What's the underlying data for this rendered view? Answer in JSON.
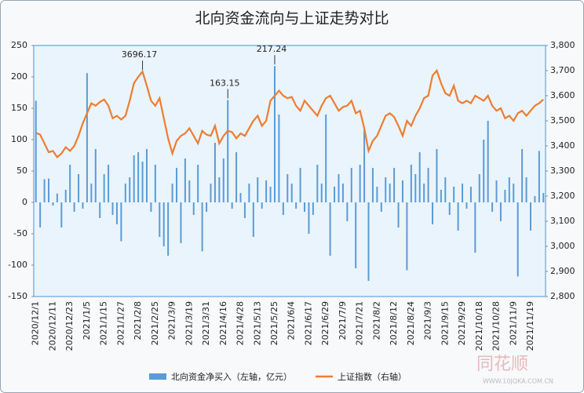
{
  "chart_data": {
    "type": "bar-line",
    "title": "北向资金流向与上证走势对比",
    "categories": [
      "2020/12/1",
      null,
      null,
      null,
      "2020/12/11",
      null,
      null,
      null,
      "2020/12/23",
      null,
      null,
      null,
      "2021/1/5",
      null,
      null,
      null,
      "2021/1/15",
      null,
      null,
      null,
      "2021/1/27",
      null,
      null,
      null,
      "2021/2/8",
      null,
      null,
      null,
      "2021/2/25",
      null,
      null,
      null,
      "2021/3/9",
      null,
      null,
      null,
      "2021/3/19",
      null,
      null,
      null,
      "2021/3/31",
      null,
      null,
      null,
      "2021/4/16",
      null,
      null,
      null,
      "2021/4/28",
      null,
      null,
      null,
      "2021/5/13",
      null,
      null,
      null,
      "2021/5/25",
      null,
      null,
      null,
      "2021/6/4",
      null,
      null,
      null,
      "2021/6/17",
      null,
      null,
      null,
      "2021/6/29",
      null,
      null,
      null,
      "2021/7/9",
      null,
      null,
      null,
      "2021/7/21",
      null,
      null,
      null,
      "2021/8/2",
      null,
      null,
      null,
      "2021/8/12",
      null,
      null,
      null,
      "2021/8/24",
      null,
      null,
      null,
      "2021/9/3",
      null,
      null,
      null,
      "2021/9/15",
      null,
      null,
      null,
      "2021/9/29",
      null,
      null,
      null,
      "2021/10/18",
      null,
      null,
      null,
      "2021/10/28",
      null,
      null,
      null,
      "2021/11/9",
      null,
      null,
      null,
      "2021/11/19",
      null,
      null,
      null
    ],
    "series": [
      {
        "name": "北向资金净买入（左轴，亿元）",
        "color": "#5b9bd5",
        "type": "bar",
        "values": [
          162,
          -40,
          37,
          38,
          -5,
          14,
          -40,
          20,
          60,
          -15,
          45,
          -10,
          206,
          30,
          85,
          -25,
          45,
          60,
          -20,
          -35,
          -62,
          30,
          40,
          75,
          80,
          65,
          85,
          -15,
          60,
          -55,
          -70,
          -85,
          30,
          55,
          -65,
          70,
          35,
          -20,
          60,
          -78,
          -15,
          30,
          95,
          40,
          70,
          163.15,
          -10,
          80,
          15,
          -25,
          30,
          -55,
          40,
          -10,
          35,
          25,
          217.24,
          140,
          -20,
          45,
          30,
          -10,
          55,
          -15,
          -50,
          -20,
          60,
          30,
          140,
          -85,
          25,
          45,
          30,
          -30,
          55,
          -105,
          60,
          115,
          -125,
          55,
          25,
          -15,
          40,
          30,
          55,
          -40,
          35,
          -108,
          60,
          45,
          80,
          30,
          55,
          -35,
          85,
          20,
          40,
          -20,
          25,
          -45,
          30,
          -10,
          25,
          -80,
          45,
          100,
          130,
          -15,
          35,
          -30,
          20,
          40,
          30,
          -118,
          85,
          40,
          -45,
          10,
          82,
          15
        ],
        "value_labels": [
          null,
          null,
          null,
          null,
          null,
          null,
          null,
          null,
          null,
          null,
          null,
          null,
          null,
          null,
          null,
          null,
          null,
          null,
          null,
          null,
          null,
          null,
          null,
          null,
          null,
          null,
          null,
          null,
          null,
          null,
          null,
          null,
          null,
          null,
          null,
          null,
          null,
          null,
          null,
          null,
          null,
          null,
          null,
          null,
          null,
          "163.15",
          null,
          null,
          null,
          null,
          null,
          null,
          null,
          null,
          null,
          null,
          "217.24",
          null,
          null,
          null,
          null,
          null,
          null,
          null,
          null,
          null,
          null,
          null,
          null,
          null,
          null,
          null,
          null,
          null,
          null,
          null,
          null,
          null,
          null,
          null,
          null,
          null,
          null,
          null,
          null,
          null,
          null,
          null,
          null,
          null,
          null,
          null,
          null,
          null,
          null,
          null,
          null,
          null,
          null,
          null,
          null,
          null,
          null,
          null,
          null,
          null,
          null,
          null,
          null,
          null,
          null,
          null,
          null,
          null,
          null,
          null,
          null,
          null,
          null,
          null
        ]
      },
      {
        "name": "上证指数（右轴）",
        "color": "#ed7d31",
        "type": "line",
        "axis": "y2",
        "values": [
          3452,
          3445,
          3410,
          3375,
          3380,
          3355,
          3370,
          3395,
          3380,
          3400,
          3440,
          3490,
          3530,
          3570,
          3560,
          3575,
          3585,
          3560,
          3510,
          3520,
          3505,
          3520,
          3580,
          3650,
          3675,
          3696.17,
          3640,
          3580,
          3560,
          3590,
          3510,
          3430,
          3370,
          3420,
          3440,
          3450,
          3470,
          3440,
          3410,
          3460,
          3445,
          3440,
          3480,
          3410,
          3440,
          3460,
          3455,
          3430,
          3450,
          3440,
          3470,
          3500,
          3520,
          3480,
          3500,
          3580,
          3600,
          3620,
          3600,
          3590,
          3595,
          3560,
          3540,
          3580,
          3560,
          3540,
          3520,
          3560,
          3590,
          3600,
          3570,
          3540,
          3555,
          3560,
          3580,
          3530,
          3540,
          3470,
          3380,
          3420,
          3440,
          3480,
          3520,
          3530,
          3515,
          3480,
          3440,
          3500,
          3480,
          3520,
          3550,
          3590,
          3600,
          3680,
          3700,
          3650,
          3610,
          3600,
          3640,
          3580,
          3570,
          3580,
          3570,
          3600,
          3590,
          3580,
          3600,
          3560,
          3540,
          3550,
          3510,
          3520,
          3500,
          3530,
          3540,
          3520,
          3540,
          3560,
          3570,
          3585
        ],
        "value_labels": [
          null,
          null,
          null,
          null,
          null,
          null,
          null,
          null,
          null,
          null,
          null,
          null,
          null,
          null,
          null,
          null,
          null,
          null,
          null,
          null,
          null,
          null,
          null,
          null,
          null,
          "3696.17",
          null,
          null,
          null,
          null,
          null,
          null,
          null,
          null,
          null,
          null,
          null,
          null,
          null,
          null,
          null,
          null,
          null,
          null,
          null,
          null,
          null,
          null,
          null,
          null,
          null,
          null,
          null,
          null,
          null,
          null,
          null,
          null,
          null,
          null,
          null,
          null,
          null,
          null,
          null,
          null,
          null,
          null,
          null,
          null,
          null,
          null,
          null,
          null,
          null,
          null,
          null,
          null,
          null,
          null,
          null,
          null,
          null,
          null,
          null,
          null,
          null,
          null,
          null,
          null,
          null,
          null,
          null,
          null,
          null,
          null,
          null,
          null,
          null,
          null,
          null,
          null,
          null,
          null,
          null,
          null,
          null,
          null,
          null,
          null,
          null,
          null,
          null,
          null,
          null,
          null,
          null,
          null,
          null,
          null
        ]
      }
    ],
    "ylim": [
      -150,
      250
    ],
    "yticks": [
      -150,
      -100,
      -50,
      0,
      50,
      100,
      150,
      200,
      250
    ],
    "y2lim": [
      2800,
      3800
    ],
    "y2ticks": [
      {
        "value": 2800,
        "label": "2,800"
      },
      {
        "value": 2900,
        "label": "2,900"
      },
      {
        "value": 3000,
        "label": "3,000"
      },
      {
        "value": 3100,
        "label": "3,100"
      },
      {
        "value": 3200,
        "label": "3,200"
      },
      {
        "value": 3300,
        "label": "3,300"
      },
      {
        "value": 3400,
        "label": "3,400"
      },
      {
        "value": 3500,
        "label": "3,500"
      },
      {
        "value": 3600,
        "label": "3,600"
      },
      {
        "value": 3700,
        "label": "3,700"
      },
      {
        "value": 3800,
        "label": "3,800"
      }
    ],
    "legend": "bottom",
    "watermark": "WWW.10JQKA.COM.CN",
    "logo": "同花顺"
  }
}
